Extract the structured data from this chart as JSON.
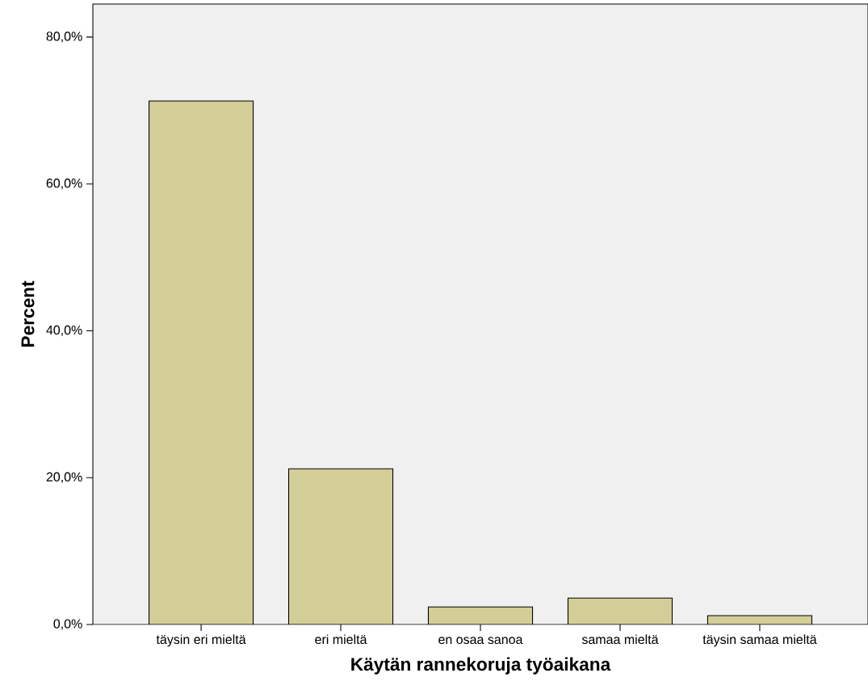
{
  "chart_data": {
    "type": "bar",
    "xlabel": "Käytän rannekoruja työaikana",
    "ylabel": "Percent",
    "categories": [
      "täysin eri mieltä",
      "eri mieltä",
      "en osaa sanoa",
      "samaa mieltä",
      "täysin samaa mieltä"
    ],
    "values": [
      71.3,
      21.2,
      2.4,
      3.6,
      1.2
    ],
    "color": "#d3cd98",
    "ylim": [
      0,
      84.5
    ],
    "yticks": [
      {
        "value": 0,
        "label": "0,0%"
      },
      {
        "value": 20,
        "label": "20,0%"
      },
      {
        "value": 40,
        "label": "40,0%"
      },
      {
        "value": 60,
        "label": "60,0%"
      },
      {
        "value": 80,
        "label": "80,0%"
      }
    ],
    "grid": false
  }
}
